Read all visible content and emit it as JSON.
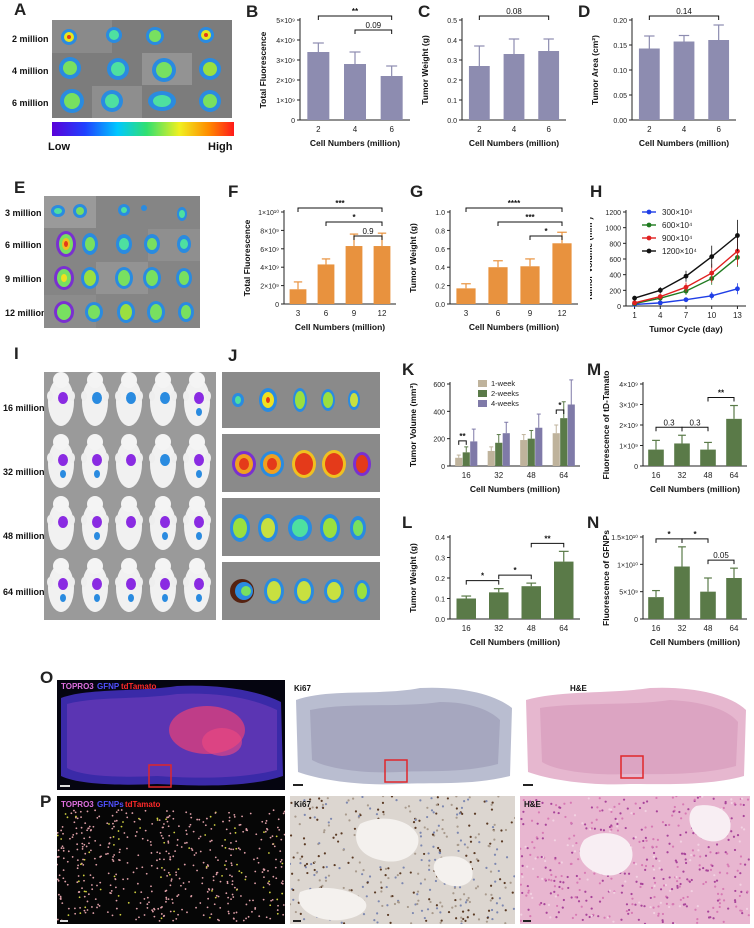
{
  "panels": {
    "A": {
      "label": "A",
      "rows": [
        "2 million",
        "4 million",
        "6 million"
      ],
      "colorbar_low": "Low",
      "colorbar_high": "High"
    },
    "E": {
      "label": "E",
      "rows": [
        "3 million",
        "6 million",
        "9 million",
        "12 million"
      ]
    },
    "I": {
      "label": "I",
      "rows": [
        "16 million",
        "32 million",
        "48 million",
        "64 million"
      ]
    },
    "J": {
      "label": "J"
    },
    "O": {
      "label": "O",
      "legend": {
        "a": "TOPRO3",
        "b": "GFNP",
        "c": "tdTamato"
      },
      "ki67": "Ki67",
      "he": "H&E"
    },
    "P": {
      "label": "P",
      "legend": {
        "a": "TOPRO3",
        "b": "GFNPs",
        "c": "tdTamato"
      },
      "ki67": "Ki67",
      "he": "H&E"
    }
  },
  "colors": {
    "purple_bar": "#8d8cb0",
    "orange_bar": "#e8923e",
    "green_bar": "#5a7a48",
    "k_tan": "#bfb39c",
    "k_green": "#5a7a48",
    "k_purple": "#7f7aa8",
    "h_blue": "#1f3ee6",
    "h_green": "#1f7a1f",
    "h_red": "#e02020",
    "h_black": "#111111",
    "box": "#e0262b"
  },
  "chart_data": [
    {
      "id": "B",
      "type": "bar",
      "categories": [
        "2",
        "4",
        "6"
      ],
      "values": [
        3400000000.0,
        2800000000.0,
        2200000000.0
      ],
      "errors": [
        450000000.0,
        600000000.0,
        500000000.0
      ],
      "ylabel": "Total Fluorescence",
      "xlabel": "Cell Numbers (million)",
      "ylim": [
        0,
        5000000000.0
      ],
      "ticks": [
        "0",
        "1×10⁹",
        "2×10⁹",
        "3×10⁹",
        "4×10⁹",
        "5×10⁹"
      ],
      "color": "purple_bar",
      "sig": [
        {
          "a": 0,
          "b": 2,
          "t": "**"
        },
        {
          "a": 1,
          "b": 2,
          "t": "0.09"
        }
      ]
    },
    {
      "id": "C",
      "type": "bar",
      "categories": [
        "2",
        "4",
        "6"
      ],
      "values": [
        0.27,
        0.33,
        0.345
      ],
      "errors": [
        0.1,
        0.075,
        0.06
      ],
      "ylabel": "Tumor Weight (g)",
      "xlabel": "Cell Numbers (million)",
      "ylim": [
        0,
        0.5
      ],
      "ticks": [
        "0.0",
        "0.1",
        "0.2",
        "0.3",
        "0.4",
        "0.5"
      ],
      "color": "purple_bar",
      "sig": [
        {
          "a": 0,
          "b": 2,
          "t": "0.08"
        }
      ]
    },
    {
      "id": "D",
      "type": "bar",
      "categories": [
        "2",
        "4",
        "6"
      ],
      "values": [
        0.143,
        0.157,
        0.16
      ],
      "errors": [
        0.025,
        0.012,
        0.03
      ],
      "ylabel": "Tumor Area (cm²)",
      "xlabel": "Cell Numbers (million)",
      "ylim": [
        0,
        0.2
      ],
      "ticks": [
        "0.00",
        "0.05",
        "0.10",
        "0.15",
        "0.20"
      ],
      "color": "purple_bar",
      "sig": [
        {
          "a": 0,
          "b": 2,
          "t": "0.14"
        }
      ]
    },
    {
      "id": "F",
      "type": "bar",
      "categories": [
        "3",
        "6",
        "9",
        "12"
      ],
      "values": [
        1600000000.0,
        4300000000.0,
        6300000000.0,
        6300000000.0
      ],
      "errors": [
        800000000.0,
        600000000.0,
        1300000000.0,
        1400000000.0
      ],
      "ylabel": "Total Fluorescence",
      "xlabel": "Cell Numbers (million)",
      "ylim": [
        0,
        10000000000.0
      ],
      "ticks": [
        "0",
        "2×10⁹",
        "4×10⁹",
        "6×10⁹",
        "8×10⁹",
        "1×10¹⁰"
      ],
      "color": "orange_bar",
      "sig": [
        {
          "a": 0,
          "b": 3,
          "t": "***"
        },
        {
          "a": 1,
          "b": 3,
          "t": "*"
        },
        {
          "a": 2,
          "b": 3,
          "t": "0.9"
        }
      ]
    },
    {
      "id": "G",
      "type": "bar",
      "categories": [
        "3",
        "6",
        "9",
        "12"
      ],
      "values": [
        0.17,
        0.4,
        0.41,
        0.66
      ],
      "errors": [
        0.05,
        0.07,
        0.08,
        0.12
      ],
      "ylabel": "Tumor Weight (g)",
      "xlabel": "Cell Numbers (million)",
      "ylim": [
        0,
        1.0
      ],
      "ticks": [
        "0.0",
        "0.2",
        "0.4",
        "0.6",
        "0.8",
        "1.0"
      ],
      "color": "orange_bar",
      "sig": [
        {
          "a": 0,
          "b": 3,
          "t": "****"
        },
        {
          "a": 1,
          "b": 3,
          "t": "***"
        },
        {
          "a": 2,
          "b": 3,
          "t": "*"
        }
      ]
    },
    {
      "id": "H",
      "type": "line",
      "x": [
        1,
        4,
        7,
        10,
        13
      ],
      "xticks": [
        "1",
        "4",
        "7",
        "10",
        "13"
      ],
      "xlabel": "Tumor Cycle (day)",
      "ylabel": "Tumor Volume (mm³)",
      "ylim": [
        0,
        1200
      ],
      "ticks": [
        "0",
        "200",
        "400",
        "600",
        "800",
        "1000",
        "1200"
      ],
      "series": [
        {
          "name": "300×10⁴",
          "color": "h_blue",
          "values": [
            20,
            40,
            80,
            130,
            220
          ],
          "err": [
            10,
            20,
            30,
            50,
            70
          ]
        },
        {
          "name": "600×10⁴",
          "color": "h_green",
          "values": [
            30,
            100,
            190,
            350,
            620
          ],
          "err": [
            15,
            30,
            50,
            80,
            120
          ]
        },
        {
          "name": "900×10⁴",
          "color": "h_red",
          "values": [
            40,
            120,
            240,
            420,
            700
          ],
          "err": [
            20,
            35,
            60,
            120,
            180
          ]
        },
        {
          "name": "1200×10⁴",
          "color": "h_black",
          "values": [
            100,
            200,
            380,
            630,
            900
          ],
          "err": [
            30,
            40,
            70,
            140,
            200
          ]
        }
      ]
    },
    {
      "id": "K",
      "type": "grouped-bar",
      "categories": [
        "16",
        "32",
        "48",
        "64"
      ],
      "ylabel": "Tumor Volume (mm³)",
      "xlabel": "Cell Numbers (million)",
      "ylim": [
        0,
        600
      ],
      "ticks": [
        "0",
        "200",
        "400",
        "600"
      ],
      "series": [
        {
          "name": "1-week",
          "color": "k_tan",
          "values": [
            60,
            110,
            190,
            240
          ],
          "err": [
            20,
            30,
            40,
            60
          ]
        },
        {
          "name": "2-weeks",
          "color": "k_green",
          "values": [
            100,
            170,
            200,
            350
          ],
          "err": [
            40,
            60,
            60,
            120
          ]
        },
        {
          "name": "4-weeks",
          "color": "k_purple",
          "values": [
            180,
            240,
            280,
            450
          ],
          "err": [
            90,
            80,
            100,
            180
          ]
        }
      ],
      "sig": [
        {
          "g": 0,
          "t": "**"
        },
        {
          "g": 3,
          "t": "*"
        }
      ]
    },
    {
      "id": "L",
      "type": "bar",
      "categories": [
        "16",
        "32",
        "48",
        "64"
      ],
      "values": [
        0.1,
        0.13,
        0.16,
        0.28
      ],
      "errors": [
        0.012,
        0.018,
        0.015,
        0.05
      ],
      "ylabel": "Tumor Weight (g)",
      "xlabel": "Cell Numbers (million)",
      "ylim": [
        0,
        0.4
      ],
      "ticks": [
        "0.0",
        "0.1",
        "0.2",
        "0.3",
        "0.4"
      ],
      "color": "green_bar",
      "sig": [
        {
          "a": 0,
          "b": 1,
          "t": "*"
        },
        {
          "a": 1,
          "b": 2,
          "t": "*"
        },
        {
          "a": 2,
          "b": 3,
          "t": "**"
        }
      ]
    },
    {
      "id": "M",
      "type": "bar",
      "categories": [
        "16",
        "32",
        "48",
        "64"
      ],
      "values": [
        800000000.0,
        1100000000.0,
        800000000.0,
        2300000000.0
      ],
      "errors": [
        450000000.0,
        400000000.0,
        350000000.0,
        650000000.0
      ],
      "ylabel": "Fluorescence of tD-Tamato",
      "xlabel": "Cell Numbers (million)",
      "ylim": [
        0,
        4000000000.0
      ],
      "ticks": [
        "0",
        "1×10⁹",
        "2×10⁹",
        "3×10⁹",
        "4×10⁹"
      ],
      "color": "green_bar",
      "sig": [
        {
          "a": 0,
          "b": 1,
          "t": "0.3"
        },
        {
          "a": 1,
          "b": 2,
          "t": "0.3"
        },
        {
          "a": 2,
          "b": 3,
          "t": "**"
        }
      ]
    },
    {
      "id": "N",
      "type": "bar",
      "categories": [
        "16",
        "32",
        "48",
        "64"
      ],
      "values": [
        4000000000.0,
        9600000000.0,
        5000000000.0,
        7500000000.0
      ],
      "errors": [
        1200000000.0,
        3600000000.0,
        2500000000.0,
        1800000000.0
      ],
      "ylabel": "Fluorescence of GFNPs",
      "xlabel": "Cell Numbers (million)",
      "ylim": [
        0,
        15000000000.0
      ],
      "ticks": [
        "0",
        "5×10⁹",
        "1×10¹⁰",
        "1.5×10¹⁰"
      ],
      "color": "green_bar",
      "sig": [
        {
          "a": 0,
          "b": 1,
          "t": "*"
        },
        {
          "a": 1,
          "b": 2,
          "t": "*"
        },
        {
          "a": 2,
          "b": 3,
          "t": "0.05"
        }
      ]
    }
  ]
}
